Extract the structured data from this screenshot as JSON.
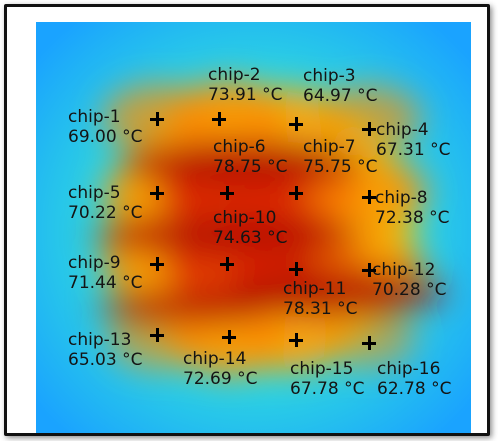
{
  "chart_data": {
    "type": "heatmap",
    "title": "",
    "unit": "°C",
    "colormap": [
      "#1aa3ff",
      "#2dd6e0",
      "#7cf08c",
      "#f2e21a",
      "#ff8a00",
      "#e42a00",
      "#aa0000"
    ],
    "chips": [
      {
        "id": "chip-1",
        "name": "chip-1",
        "temp": "69.00 °C"
      },
      {
        "id": "chip-2",
        "name": "chip-2",
        "temp": "73.91 °C"
      },
      {
        "id": "chip-3",
        "name": "chip-3",
        "temp": "64.97 °C"
      },
      {
        "id": "chip-4",
        "name": "chip-4",
        "temp": "67.31 °C"
      },
      {
        "id": "chip-5",
        "name": "chip-5",
        "temp": "70.22 °C"
      },
      {
        "id": "chip-6",
        "name": "chip-6",
        "temp": "78.75 °C"
      },
      {
        "id": "chip-7",
        "name": "chip-7",
        "temp": "75.75 °C"
      },
      {
        "id": "chip-8",
        "name": "chip-8",
        "temp": "72.38 °C"
      },
      {
        "id": "chip-9",
        "name": "chip-9",
        "temp": "71.44 °C"
      },
      {
        "id": "chip-10",
        "name": "chip-10",
        "temp": "74.63 °C"
      },
      {
        "id": "chip-11",
        "name": "chip-11",
        "temp": "78.31 °C"
      },
      {
        "id": "chip-12",
        "name": "chip-12",
        "temp": "70.28 °C"
      },
      {
        "id": "chip-13",
        "name": "chip-13",
        "temp": "65.03 °C"
      },
      {
        "id": "chip-14",
        "name": "chip-14",
        "temp": "72.69 °C"
      },
      {
        "id": "chip-15",
        "name": "chip-15",
        "temp": "67.78 °C"
      },
      {
        "id": "chip-16",
        "name": "chip-16",
        "temp": "62.78 °C"
      }
    ]
  }
}
